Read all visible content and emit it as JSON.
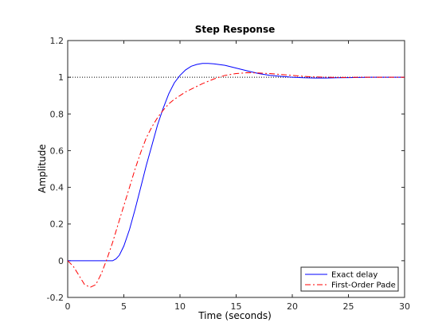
{
  "chart_data": {
    "type": "line",
    "title": "Step Response",
    "xlabel": "Time (seconds)",
    "ylabel": "Amplitude",
    "xlim": [
      0,
      30
    ],
    "ylim": [
      -0.2,
      1.2
    ],
    "x_ticks": [
      0,
      5,
      10,
      15,
      20,
      25,
      30
    ],
    "y_ticks": [
      -0.2,
      0,
      0.2,
      0.4,
      0.6,
      0.8,
      1,
      1.2
    ],
    "x_tick_labels": [
      "0",
      "5",
      "10",
      "15",
      "20",
      "25",
      "30"
    ],
    "y_tick_labels": [
      "-0.2",
      "0",
      "0.2",
      "0.4",
      "0.6",
      "0.8",
      "1",
      "1.2"
    ],
    "grid": false,
    "legend_position": "bottom-right",
    "reference_line": {
      "y": 1,
      "style": "dotted",
      "color": "#000000"
    },
    "series": [
      {
        "name": "Exact delay",
        "color": "#0000ff",
        "style": "solid",
        "x": [
          0,
          4,
          4.3,
          4.6,
          5,
          5.5,
          6,
          6.5,
          7,
          7.5,
          8,
          8.5,
          9,
          9.5,
          10,
          10.5,
          11,
          11.5,
          12,
          12.5,
          13,
          14,
          15,
          16,
          17,
          18,
          19,
          20,
          21,
          22,
          23,
          24,
          25,
          26,
          27,
          28,
          29,
          30
        ],
        "y": [
          0,
          0,
          0.01,
          0.03,
          0.08,
          0.17,
          0.28,
          0.4,
          0.52,
          0.63,
          0.74,
          0.83,
          0.91,
          0.97,
          1.01,
          1.04,
          1.06,
          1.07,
          1.075,
          1.075,
          1.073,
          1.065,
          1.05,
          1.035,
          1.02,
          1.01,
          1.005,
          1.0,
          0.997,
          0.996,
          0.996,
          0.997,
          0.998,
          0.999,
          1.0,
          1.0,
          1.0,
          1.0
        ]
      },
      {
        "name": "First-Order Pade",
        "color": "#ff0000",
        "style": "dashdot",
        "x": [
          0,
          0.5,
          1,
          1.5,
          2,
          2.5,
          3,
          3.5,
          4,
          4.5,
          5,
          5.5,
          6,
          6.5,
          7,
          7.5,
          8,
          8.5,
          9,
          9.5,
          10,
          10.5,
          11,
          12,
          13,
          14,
          15,
          16,
          17,
          18,
          19,
          20,
          21,
          22,
          23,
          24,
          25,
          26,
          27,
          28,
          29,
          30
        ],
        "y": [
          0,
          -0.03,
          -0.08,
          -0.13,
          -0.145,
          -0.13,
          -0.07,
          0.01,
          0.1,
          0.2,
          0.3,
          0.4,
          0.5,
          0.59,
          0.67,
          0.73,
          0.78,
          0.82,
          0.855,
          0.88,
          0.9,
          0.92,
          0.935,
          0.965,
          0.99,
          1.01,
          1.02,
          1.025,
          1.023,
          1.02,
          1.015,
          1.01,
          1.005,
          1.002,
          1.0,
          0.999,
          0.999,
          1.0,
          1.0,
          1.0,
          1.0,
          1.0
        ]
      }
    ]
  }
}
